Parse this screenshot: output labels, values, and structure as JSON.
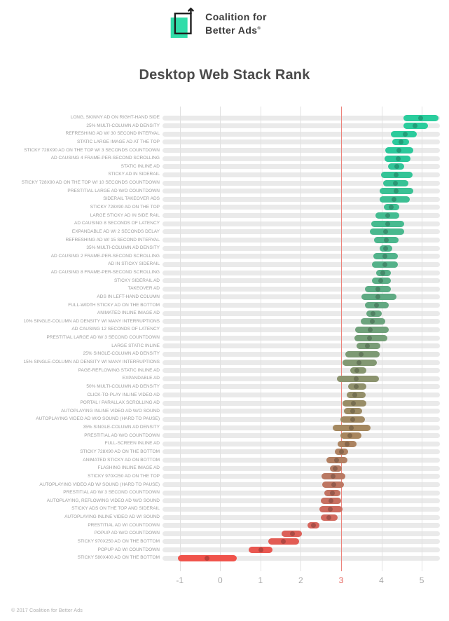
{
  "header": {
    "logo_line1": "Coalition for",
    "logo_line2": "Better Ads",
    "registered_mark": "®",
    "brand_teal": "#31dda9",
    "brand_black": "#1e1e1e"
  },
  "title": "Desktop Web Stack Rank",
  "footer": "© 2017 Coalition for Better Ads",
  "chart_data": {
    "type": "bar",
    "subtype": "horizontal-range-dot",
    "title": "Desktop Web Stack Rank",
    "xlabel": "",
    "ylabel": "",
    "xlim": [
      -1.43,
      5.45
    ],
    "grid": true,
    "x_axis": {
      "ticks": [
        -1,
        0,
        1,
        2,
        3,
        4,
        5
      ],
      "highlight_tick": 3,
      "highlight_color": "#e4615a",
      "threshold_line_color": "#ec837b"
    },
    "track_color": "#eaeaea",
    "color_scale": [
      [
        0.0,
        "#2acd9d"
      ],
      [
        0.09,
        "#2cc79a"
      ],
      [
        0.18,
        "#3cc093"
      ],
      [
        0.3,
        "#4fb48c"
      ],
      [
        0.42,
        "#61a982"
      ],
      [
        0.52,
        "#799c76"
      ],
      [
        0.62,
        "#92906b"
      ],
      [
        0.72,
        "#a8865e"
      ],
      [
        0.8,
        "#b57c64"
      ],
      [
        0.88,
        "#c96d60"
      ],
      [
        0.94,
        "#da615a"
      ],
      [
        1.0,
        "#f0534b"
      ]
    ],
    "dot_darken": 0.78,
    "rows": [
      {
        "label": "LONG, SKINNY AD ON RIGHT-HAND SIDE",
        "min": 4.55,
        "mid": 4.98,
        "max": 5.42
      },
      {
        "label": "25% MULTI-COLUMN AD DENSITY",
        "min": 4.55,
        "mid": 4.84,
        "max": 5.15
      },
      {
        "label": "REFRESHING AD W/ 30 SECOND INTERVAL",
        "min": 4.24,
        "mid": 4.59,
        "max": 4.88
      },
      {
        "label": "STATIC LARGE IMAGE AD AT THE TOP",
        "min": 4.27,
        "mid": 4.48,
        "max": 4.69
      },
      {
        "label": "STICKY 728X90 AD ON THE TOP W/ 3 SECONDS COUNTDOWN",
        "min": 4.09,
        "mid": 4.43,
        "max": 4.79
      },
      {
        "label": "AD CAUSING 4 FRAME-PER-SECOND SCROLLING",
        "min": 4.08,
        "mid": 4.42,
        "max": 4.72
      },
      {
        "label": "STATIC INLINE AD",
        "min": 4.17,
        "mid": 4.38,
        "max": 4.57
      },
      {
        "label": "STICKY AD IN SIDERAIL",
        "min": 3.99,
        "mid": 4.37,
        "max": 4.77
      },
      {
        "label": "STICKY 728X90 AD ON THE TOP W/ 10 SECONDS COUNTDOWN",
        "min": 4.05,
        "mid": 4.35,
        "max": 4.67
      },
      {
        "label": "PRESTITIAL LARGE AD W/O COUNTDOWN",
        "min": 3.95,
        "mid": 4.36,
        "max": 4.79
      },
      {
        "label": "SIDERAIL TAKEOVER ADS",
        "min": 3.95,
        "mid": 4.32,
        "max": 4.7
      },
      {
        "label": "STICKY 728X90 AD ON THE TOP",
        "min": 4.06,
        "mid": 4.25,
        "max": 4.44
      },
      {
        "label": "LARGE STICKY AD IN SIDE RAIL",
        "min": 3.86,
        "mid": 4.15,
        "max": 4.44
      },
      {
        "label": "AD CAUSING 8 SECONDS OF LATENCY",
        "min": 3.74,
        "mid": 4.16,
        "max": 4.56
      },
      {
        "label": "EXPANDABLE AD W/ 2 SECONDS DELAY",
        "min": 3.72,
        "mid": 4.1,
        "max": 4.56
      },
      {
        "label": "REFRESHING AD W/ 15 SECOND INTERVAL",
        "min": 3.81,
        "mid": 4.12,
        "max": 4.43
      },
      {
        "label": "35% MULTI-COLUMN AD DENSITY",
        "min": 3.96,
        "mid": 4.1,
        "max": 4.27
      },
      {
        "label": "AD CAUSING 2 FRAME-PER-SECOND SCROLLING",
        "min": 3.8,
        "mid": 4.09,
        "max": 4.41
      },
      {
        "label": "AD IN STICKY SIDERAIL",
        "min": 3.77,
        "mid": 4.08,
        "max": 4.4
      },
      {
        "label": "AD CAUSING 8 FRAME-PER-SECOND SCROLLING",
        "min": 3.87,
        "mid": 4.04,
        "max": 4.24
      },
      {
        "label": "STICKY SIDERAIL AD",
        "min": 3.77,
        "mid": 3.98,
        "max": 4.24
      },
      {
        "label": "TAKEOVER AD",
        "min": 3.6,
        "mid": 3.92,
        "max": 4.24
      },
      {
        "label": "ADS IN LEFT-HAND COLUMN",
        "min": 3.51,
        "mid": 3.91,
        "max": 4.37
      },
      {
        "label": "FULL-WIDTH STICKY AD ON THE BOTTOM",
        "min": 3.6,
        "mid": 3.88,
        "max": 4.18
      },
      {
        "label": "ANIMATED INLINE IMAGE AD",
        "min": 3.63,
        "mid": 3.79,
        "max": 4.01
      },
      {
        "label": "10% SINGLE-COLUMN AD DENSITY W/ MANY INTERRUPTIONS",
        "min": 3.48,
        "mid": 3.77,
        "max": 4.1
      },
      {
        "label": "AD CAUSING 12 SECONDS OF LATENCY",
        "min": 3.34,
        "mid": 3.73,
        "max": 4.18
      },
      {
        "label": "PRESTITIAL LARGE AD W/ 3 SECOND COUNTDOWN",
        "min": 3.33,
        "mid": 3.7,
        "max": 4.14
      },
      {
        "label": "LARGE STATIC INLINE",
        "min": 3.39,
        "mid": 3.66,
        "max": 3.98
      },
      {
        "label": "25% SINGLE-COLUMN AD DENSITY",
        "min": 3.1,
        "mid": 3.5,
        "max": 3.96
      },
      {
        "label": "15% SINGLE-COLUMN AD DENSITY W/ MANY INTERRUPTIONS",
        "min": 3.04,
        "mid": 3.45,
        "max": 3.89
      },
      {
        "label": "PAGE-REFLOWING STATIC INLINE AD",
        "min": 3.23,
        "mid": 3.4,
        "max": 3.63
      },
      {
        "label": "EXPANDABLE AD",
        "min": 2.89,
        "mid": 3.38,
        "max": 3.94
      },
      {
        "label": "50% MULTI-COLUMN AD DENSITY",
        "min": 3.17,
        "mid": 3.37,
        "max": 3.63
      },
      {
        "label": "CLICK-TO-PLAY INLINE VIDEO AD",
        "min": 3.14,
        "mid": 3.34,
        "max": 3.61
      },
      {
        "label": "PORTAL / PARALLAX SCROLLING AD",
        "min": 3.04,
        "mid": 3.31,
        "max": 3.63
      },
      {
        "label": "AUTOPLAYING INLINE VIDEO AD W/O SOUND",
        "min": 3.07,
        "mid": 3.28,
        "max": 3.53
      },
      {
        "label": "AUTOPLAYING VIDEO AD W/O SOUND (HARD TO PAUSE)",
        "min": 2.98,
        "mid": 3.28,
        "max": 3.6
      },
      {
        "label": "35% SINGLE-COLUMN AD DENSITY",
        "min": 2.8,
        "mid": 3.25,
        "max": 3.73
      },
      {
        "label": "PRESTITIAL AD W/O COUNTDOWN",
        "min": 2.98,
        "mid": 3.22,
        "max": 3.5
      },
      {
        "label": "FULL-SCREEN INLINE AD",
        "min": 2.92,
        "mid": 3.15,
        "max": 3.39
      },
      {
        "label": "STICKY 728X90 AD ON THE BOTTOM",
        "min": 2.85,
        "mid": 3.01,
        "max": 3.17
      },
      {
        "label": "ANIMATED STICKY AD ON BOTTOM",
        "min": 2.63,
        "mid": 2.88,
        "max": 3.15
      },
      {
        "label": "FLASHING INLINE IMAGE AD",
        "min": 2.72,
        "mid": 2.86,
        "max": 3.02
      },
      {
        "label": "STICKY 970X250 AD ON THE TOP",
        "min": 2.52,
        "mid": 2.8,
        "max": 3.11
      },
      {
        "label": "AUTOPLAYING VIDEO AD W/ SOUND (HARD TO PAUSE)",
        "min": 2.53,
        "mid": 2.81,
        "max": 3.07
      },
      {
        "label": "PRESTITIAL AD W/ 3 SECOND COUNTDOWN",
        "min": 2.59,
        "mid": 2.79,
        "max": 2.98
      },
      {
        "label": "AUTOPLAYING, REFLOWING VIDEO AD W/O SOUND",
        "min": 2.5,
        "mid": 2.75,
        "max": 3.0
      },
      {
        "label": "STICKY ADS ON THE TOP AND SIDERAIL",
        "min": 2.46,
        "mid": 2.73,
        "max": 3.04
      },
      {
        "label": "AUTOPLAYING INLINE VIDEO AD W/ SOUND",
        "min": 2.5,
        "mid": 2.69,
        "max": 2.92
      },
      {
        "label": "PRESTITIAL AD W/ COUNTDOWN",
        "min": 2.17,
        "mid": 2.31,
        "max": 2.46
      },
      {
        "label": "POPUP AD W/O COUNTDOWN",
        "min": 1.53,
        "mid": 1.79,
        "max": 2.03
      },
      {
        "label": "STICKY 970X250 AD ON THE BOTTOM",
        "min": 1.2,
        "mid": 1.57,
        "max": 1.96
      },
      {
        "label": "POPUP AD W/ COUNTDOWN",
        "min": 0.71,
        "mid": 1.01,
        "max": 1.3
      },
      {
        "label": "STICKY 580X400 AD ON THE BOTTOM",
        "min": -1.05,
        "mid": -0.32,
        "max": 0.41
      }
    ]
  }
}
